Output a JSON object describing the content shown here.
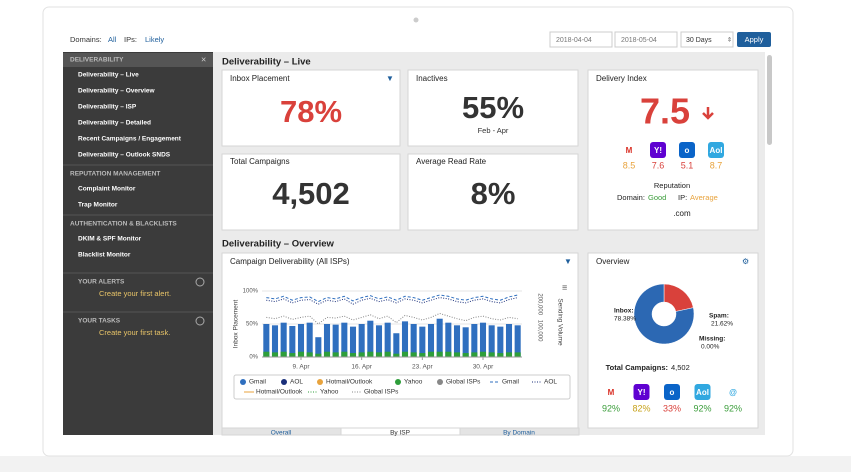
{
  "filters": {
    "domains_label": "Domains:",
    "domains_value": "All",
    "ips_label": "IPs:",
    "ips_value": "Likely",
    "date_from": "2018-04-04",
    "date_to": "2018-05-04",
    "range": "30 Days",
    "apply": "Apply"
  },
  "sidebar": {
    "sections": [
      {
        "title": "DELIVERABILITY",
        "items": [
          "Deliverability – Live",
          "Deliverability – Overview",
          "Deliverability – ISP",
          "Deliverability – Detailed",
          "Recent Campaigns / Engagement",
          "Deliverability – Outlook SNDS"
        ]
      },
      {
        "title": "REPUTATION MANAGEMENT",
        "items": [
          "Complaint Monitor",
          "Trap Monitor"
        ]
      },
      {
        "title": "AUTHENTICATION & BLACKLISTS",
        "items": [
          "DKIM & SPF Monitor",
          "Blacklist Monitor"
        ]
      }
    ],
    "panels": [
      {
        "title": "YOUR ALERTS",
        "action": "Create your first alert."
      },
      {
        "title": "YOUR TASKS",
        "action": "Create your first task."
      }
    ]
  },
  "live": {
    "title": "Deliverability – Live",
    "inbox_placement": {
      "label": "Inbox Placement",
      "value": "78%"
    },
    "inactives": {
      "label": "Inactives",
      "value": "55%",
      "period": "Feb - Apr"
    },
    "total_campaigns": {
      "label": "Total Campaigns",
      "value": "4,502"
    },
    "read_rate": {
      "label": "Average Read Rate",
      "value": "8%"
    },
    "delivery_index": {
      "label": "Delivery Index",
      "value": "7.5",
      "providers": [
        {
          "icon": "M",
          "icon_color": "#d93025",
          "icon_bg": "#ffffff",
          "score": "8.5",
          "color": "#e8a33d"
        },
        {
          "icon": "Y!",
          "icon_color": "#ffffff",
          "icon_bg": "#5f01d1",
          "score": "7.6",
          "color": "#d9413b"
        },
        {
          "icon": "o",
          "icon_color": "#ffffff",
          "icon_bg": "#0a64c8",
          "score": "5.1",
          "color": "#d9413b"
        },
        {
          "icon": "Aol",
          "icon_color": "#ffffff",
          "icon_bg": "#31a8e0",
          "score": "8.7",
          "color": "#e8a33d"
        }
      ],
      "reputation": {
        "label": "Reputation",
        "domain_label": "Domain:",
        "domain_value": "Good",
        "ip_label": "IP:",
        "ip_value": "Average"
      },
      "domain": ".com"
    }
  },
  "overview": {
    "title": "Deliverability – Overview",
    "campaign_chart": {
      "type": "bar",
      "title": "Campaign Deliverability (All ISPs)",
      "y_label": "Inbox Placement",
      "y2_label": "Sending Volume",
      "categories": [
        null,
        null,
        null,
        null,
        "9. Apr",
        null,
        null,
        null,
        null,
        null,
        null,
        "16. Apr",
        null,
        null,
        null,
        null,
        null,
        null,
        "23. Apr",
        null,
        null,
        null,
        null,
        null,
        null,
        "30. Apr",
        null,
        null,
        null,
        null
      ],
      "ylim": [
        0,
        100
      ],
      "yticks": [
        {
          "value": 0,
          "label": "0%"
        },
        {
          "value": 50,
          "label": "50%"
        },
        {
          "value": 100,
          "label": "100%"
        }
      ],
      "y2lim": [
        0,
        250000
      ],
      "y2ticks": [
        {
          "value": 100000,
          "label": "100,000"
        },
        {
          "value": 200000,
          "label": "200,000"
        }
      ],
      "grid": true,
      "series": [
        {
          "name": "Gmail",
          "color": "#2f6fbf",
          "style": "bar",
          "values": [
            50,
            48,
            52,
            47,
            50,
            52,
            30,
            50,
            49,
            52,
            46,
            50,
            55,
            48,
            52,
            36,
            54,
            50,
            46,
            50,
            58,
            52,
            48,
            45,
            50,
            52,
            48,
            46,
            50,
            48
          ]
        },
        {
          "name": "AOL",
          "color": "#1a2f7a",
          "style": "bar"
        },
        {
          "name": "Hotmail/Outlook",
          "color": "#e8a33d",
          "style": "bar"
        },
        {
          "name": "Yahoo",
          "color": "#2e9e3a",
          "style": "bar",
          "values": [
            8,
            7,
            8,
            6,
            8,
            7,
            5,
            8,
            7,
            8,
            6,
            7,
            8,
            7,
            8,
            5,
            8,
            7,
            6,
            8,
            8,
            8,
            7,
            6,
            7,
            8,
            7,
            6,
            7,
            7
          ]
        },
        {
          "name": "Global ISPs",
          "color": "#888888",
          "style": "bar"
        },
        {
          "name": "Gmail",
          "color": "#2f6fbf",
          "style": "dash",
          "values": [
            90,
            88,
            92,
            86,
            90,
            91,
            84,
            90,
            88,
            92,
            85,
            90,
            93,
            88,
            91,
            86,
            92,
            90,
            86,
            90,
            94,
            92,
            88,
            86,
            90,
            92,
            88,
            86,
            91,
            94
          ]
        },
        {
          "name": "AOL",
          "color": "#1a2f7a",
          "style": "dot",
          "values": [
            86,
            84,
            88,
            82,
            86,
            87,
            80,
            86,
            84,
            88,
            80,
            86,
            89,
            84,
            87,
            82,
            88,
            86,
            82,
            86,
            90,
            88,
            84,
            82,
            86,
            88,
            84,
            82,
            87,
            90
          ]
        },
        {
          "name": "Hotmail/Outlook",
          "color": "#e8a33d",
          "style": "line"
        },
        {
          "name": "Yahoo",
          "color": "#2e9e3a",
          "style": "dot"
        },
        {
          "name": "Global ISPs",
          "color": "#888888",
          "style": "dot",
          "values": [
            60,
            58,
            62,
            57,
            60,
            62,
            50,
            60,
            59,
            62,
            56,
            60,
            64,
            58,
            62,
            52,
            63,
            60,
            56,
            60,
            66,
            62,
            58,
            55,
            60,
            62,
            58,
            56,
            60,
            58
          ]
        }
      ]
    },
    "summary": {
      "title": "Overview",
      "type": "pie",
      "categories": [
        "Inbox:",
        "Spam:",
        "Missing:"
      ],
      "values": [
        78.38,
        21.62,
        0
      ],
      "value_labels": [
        "78.38%",
        "21.62%",
        "0.00%"
      ],
      "colors": [
        "#2c68b3",
        "#d9413b",
        "#999999"
      ],
      "total_label": "Total Campaigns:",
      "total": "4,502",
      "providers": [
        {
          "icon": "M",
          "icon_color": "#d93025",
          "icon_bg": "#ffffff",
          "value": "92%",
          "color": "#3a9d3a"
        },
        {
          "icon": "Y!",
          "icon_color": "#ffffff",
          "icon_bg": "#5f01d1",
          "value": "82%",
          "color": "#c7a21a"
        },
        {
          "icon": "o",
          "icon_color": "#ffffff",
          "icon_bg": "#0a64c8",
          "value": "33%",
          "color": "#d9413b"
        },
        {
          "icon": "Aol",
          "icon_color": "#ffffff",
          "icon_bg": "#31a8e0",
          "value": "92%",
          "color": "#3a9d3a"
        },
        {
          "icon": "@",
          "icon_color": "#31a8e0",
          "icon_bg": "#ffffff",
          "value": "92%",
          "color": "#3a9d3a"
        }
      ]
    },
    "tabs": [
      "Overall",
      "By ISP",
      "By Domain"
    ]
  }
}
